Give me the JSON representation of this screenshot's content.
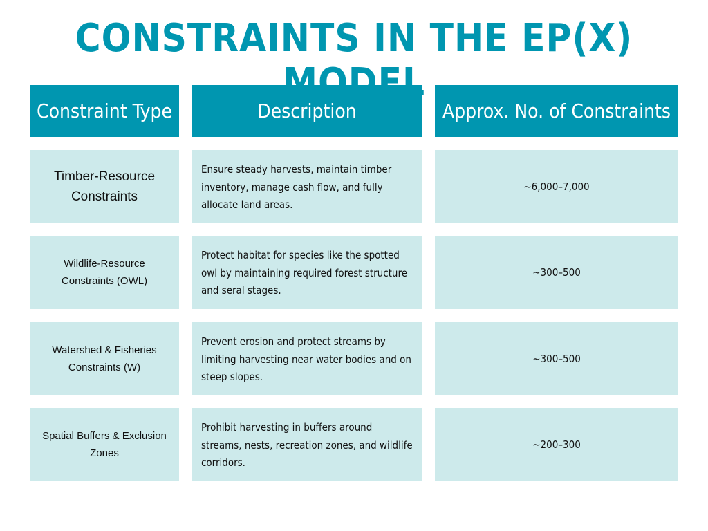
{
  "title": "CONSTRAINTS IN THE EP(X) MODEL",
  "table": {
    "headers": [
      "Constraint Type",
      "Description",
      "Approx. No. of Constraints"
    ],
    "rows": [
      {
        "type": "Timber-Resource Constraints",
        "description": "Ensure steady harvests, maintain timber inventory, manage cash flow, and fully allocate land areas.",
        "count": "~6,000–7,000"
      },
      {
        "type": "Wildlife-Resource Constraints (OWL)",
        "description": "Protect habitat for species like the spotted owl by maintaining required forest structure and seral stages.",
        "count": "~300–500"
      },
      {
        "type": "Watershed & Fisheries Constraints (W)",
        "description": "Prevent erosion and protect streams by limiting harvesting near water bodies and on steep slopes.",
        "count": "~300–500"
      },
      {
        "type": "Spatial Buffers & Exclusion Zones",
        "description": "Prohibit harvesting in buffers around streams, nests, recreation zones, and wildlife corridors.",
        "count": "~200–300"
      }
    ]
  }
}
